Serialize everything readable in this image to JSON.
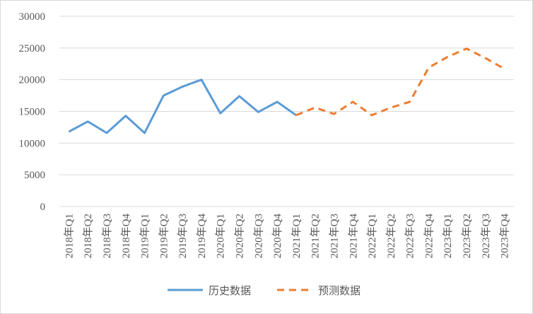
{
  "chart_data": {
    "type": "line",
    "categories": [
      "2018年Q1",
      "2018年Q2",
      "2018年Q3",
      "2018年Q4",
      "2019年Q1",
      "2019年Q2",
      "2019年Q3",
      "2019年Q4",
      "2020年Q1",
      "2020年Q2",
      "2020年Q3",
      "2020年Q4",
      "2021年Q1",
      "2021年Q2",
      "2021年Q3",
      "2021年Q4",
      "2022年Q1",
      "2022年Q2",
      "2022年Q3",
      "2022年Q4",
      "2023年Q1",
      "2023年Q2",
      "2023年Q3",
      "2023年Q4"
    ],
    "series": [
      {
        "name": "历史数据",
        "color": "#5b9bd5",
        "dashed": false,
        "values": [
          11800,
          13400,
          11600,
          14300,
          11600,
          17500,
          18900,
          20000,
          14700,
          17400,
          14900,
          16500,
          14400,
          null,
          null,
          null,
          null,
          null,
          null,
          null,
          null,
          null,
          null,
          null
        ]
      },
      {
        "name": "预测数据",
        "color": "#ed7d31",
        "dashed": true,
        "values": [
          null,
          null,
          null,
          null,
          null,
          null,
          null,
          null,
          null,
          null,
          null,
          null,
          14400,
          15600,
          14600,
          16500,
          14400,
          15600,
          16500,
          21900,
          23600,
          24900,
          23400,
          21700
        ]
      }
    ],
    "ylim": [
      0,
      30000
    ],
    "yticks": [
      0,
      5000,
      10000,
      15000,
      20000,
      25000,
      30000
    ],
    "grid": true,
    "legend": "bottom"
  }
}
